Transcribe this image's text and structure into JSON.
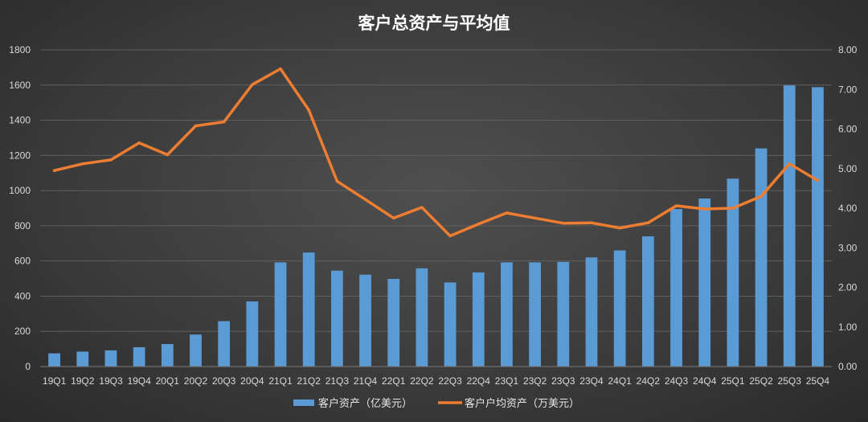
{
  "chart_data": {
    "type": "bar",
    "title": "客户总资产与平均值",
    "categories": [
      "19Q1",
      "19Q2",
      "19Q3",
      "19Q4",
      "20Q1",
      "20Q2",
      "20Q3",
      "20Q4",
      "21Q1",
      "21Q2",
      "21Q3",
      "21Q4",
      "22Q1",
      "22Q2",
      "22Q3",
      "22Q4",
      "23Q1",
      "23Q2",
      "23Q3",
      "23Q4",
      "24Q1",
      "24Q2",
      "24Q3",
      "24Q4",
      "25Q1",
      "25Q2",
      "25Q3",
      "25Q4"
    ],
    "series": [
      {
        "name": "客户资产（亿美元）",
        "type": "bar",
        "axis": "left",
        "color": "#5b9bd5",
        "values": [
          75,
          85,
          92,
          110,
          128,
          182,
          258,
          370,
          592,
          648,
          545,
          522,
          498,
          558,
          478,
          535,
          592,
          592,
          595,
          620,
          660,
          740,
          895,
          955,
          1068,
          1240,
          1598,
          1588
        ]
      },
      {
        "name": "客户户均资产（万美元）",
        "type": "line",
        "axis": "right",
        "color": "#ed7d31",
        "values": [
          4.95,
          5.12,
          5.22,
          5.65,
          5.35,
          6.08,
          6.18,
          7.12,
          7.52,
          6.48,
          4.68,
          4.22,
          3.75,
          4.02,
          3.3,
          3.6,
          3.88,
          3.75,
          3.62,
          3.63,
          3.5,
          3.63,
          4.06,
          3.98,
          4.0,
          4.3,
          5.12,
          4.7
        ]
      }
    ],
    "y_left": {
      "ylim": [
        0,
        1800
      ],
      "ticks": [
        "0",
        "200",
        "400",
        "600",
        "800",
        "1000",
        "1200",
        "1400",
        "1600",
        "1800"
      ]
    },
    "y_right": {
      "ylim": [
        0,
        8
      ],
      "ticks": [
        "0.00",
        "1.00",
        "2.00",
        "3.00",
        "4.00",
        "5.00",
        "6.00",
        "7.00",
        "8.00"
      ]
    },
    "grid": true,
    "legend_position": "bottom"
  }
}
